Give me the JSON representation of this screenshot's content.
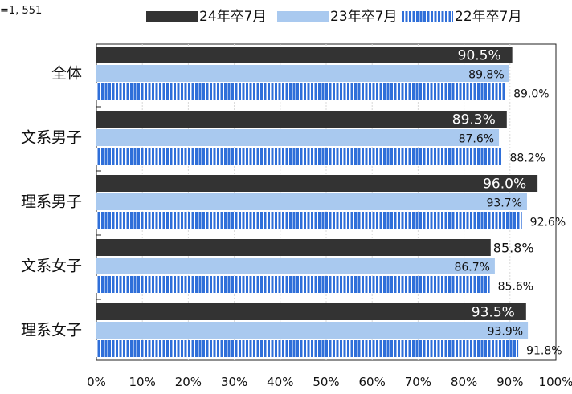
{
  "sample_note": "=1, 551",
  "colors": {
    "dark": "#333333",
    "light": "#a9c9ef",
    "blue": "#2f6fd9",
    "stripe_gap": "#ffffff",
    "grid": "#d9d9d9"
  },
  "chart_data": {
    "type": "bar",
    "orientation": "horizontal",
    "categories": [
      "全体",
      "文系男子",
      "理系男子",
      "文系女子",
      "理系女子"
    ],
    "series": [
      {
        "name": "24年卒7月",
        "values": [
          90.5,
          89.3,
          96.0,
          85.8,
          93.5
        ],
        "labels": [
          "90.5%",
          "89.3%",
          "96.0%",
          "85.8%",
          "93.5%"
        ]
      },
      {
        "name": "23年卒7月",
        "values": [
          89.8,
          87.6,
          93.7,
          86.7,
          93.9
        ],
        "labels": [
          "89.8%",
          "87.6%",
          "93.7%",
          "86.7%",
          "93.9%"
        ]
      },
      {
        "name": "22年卒7月",
        "values": [
          89.0,
          88.2,
          92.6,
          85.6,
          91.8
        ],
        "labels": [
          "89.0%",
          "88.2%",
          "92.6%",
          "85.6%",
          "91.8%"
        ]
      }
    ],
    "x_ticks": [
      "0%",
      "10%",
      "20%",
      "30%",
      "40%",
      "50%",
      "60%",
      "70%",
      "80%",
      "90%",
      "100%"
    ],
    "xlim": [
      0,
      100
    ],
    "grid": true,
    "legend_position": "top"
  }
}
